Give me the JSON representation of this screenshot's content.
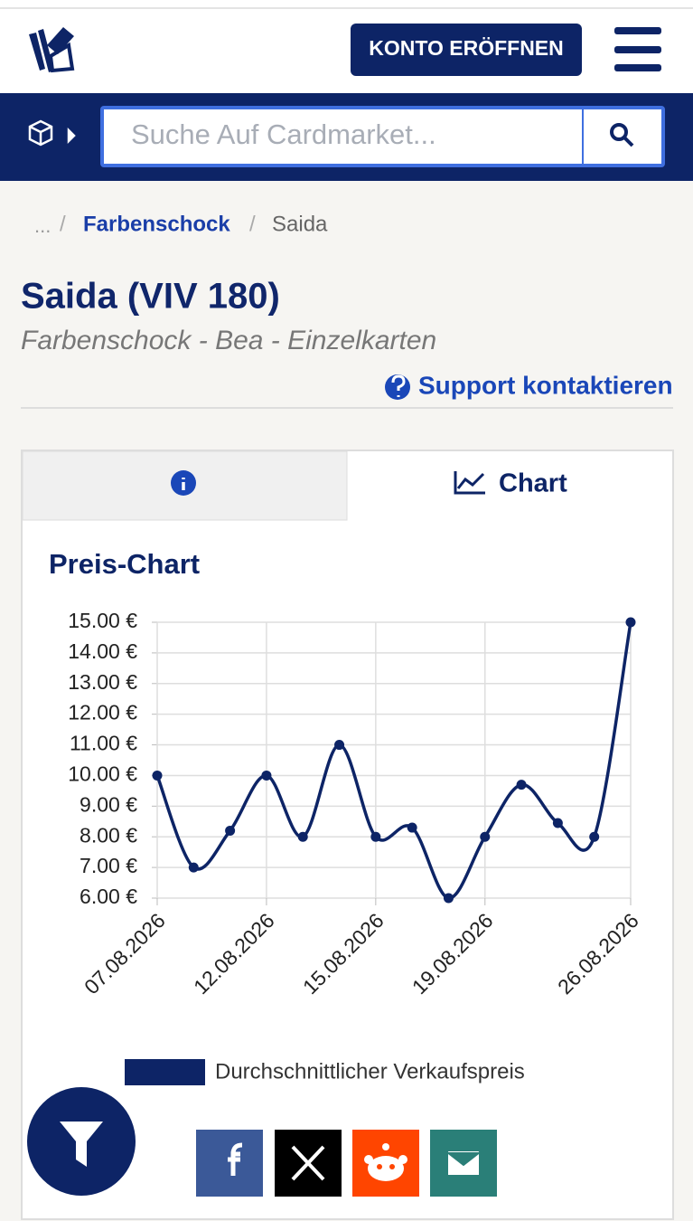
{
  "header": {
    "button": "KONTO ERÖFFNEN"
  },
  "search": {
    "placeholder": "Suche Auf Cardmarket..."
  },
  "breadcrumb": {
    "items": [
      "...",
      "Farbenschock",
      "Saida"
    ],
    "separator": "/"
  },
  "product": {
    "title": "Saida (VIV 180)",
    "subtitle": "Farbenschock - Bea - Einzelkarten",
    "support": "Support kontaktieren"
  },
  "tabs": {
    "chart": "Chart"
  },
  "chart_data": {
    "type": "line",
    "title": "Preis-Chart",
    "categories": [
      "07.08.2026",
      null,
      null,
      "12.08.2026",
      null,
      null,
      "15.08.2026",
      null,
      null,
      "19.08.2026",
      null,
      null,
      null,
      "26.08.2026"
    ],
    "series": [
      {
        "name": "Durchschnittlicher Verkaufspreis",
        "color": "#0d2466",
        "values": [
          10,
          7,
          8.2,
          10,
          8,
          11,
          8,
          8.3,
          6,
          8,
          9.7,
          8.45,
          8,
          15
        ]
      }
    ],
    "ylim": [
      6,
      15
    ],
    "yticks": [
      {
        "value": 6,
        "label": "6.00 €"
      },
      {
        "value": 7,
        "label": "7.00 €"
      },
      {
        "value": 8,
        "label": "8.00 €"
      },
      {
        "value": 9,
        "label": "9.00 €"
      },
      {
        "value": 10,
        "label": "10.00 €"
      },
      {
        "value": 11,
        "label": "11.00 €"
      },
      {
        "value": 12,
        "label": "12.00 €"
      },
      {
        "value": 13,
        "label": "13.00 €"
      },
      {
        "value": 14,
        "label": "14.00 €"
      },
      {
        "value": 15,
        "label": "15.00 €"
      }
    ],
    "grid": true
  }
}
